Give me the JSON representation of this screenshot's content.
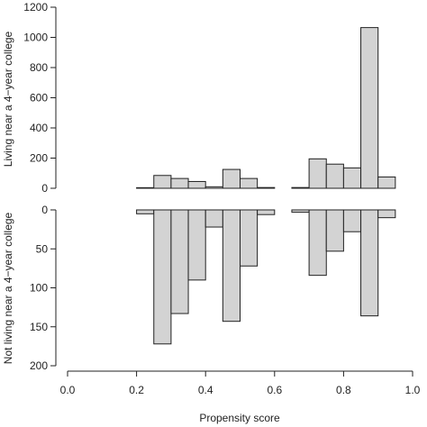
{
  "chart_data": {
    "type": "bar",
    "subtype": "mirrored-histogram",
    "xlabel": "Propensity score",
    "xlim": [
      0.0,
      1.0
    ],
    "x_ticks": [
      "0.0",
      "0.2",
      "0.4",
      "0.6",
      "0.8",
      "1.0"
    ],
    "bin_edges": [
      0.2,
      0.25,
      0.3,
      0.35,
      0.4,
      0.45,
      0.5,
      0.55,
      0.6,
      0.65,
      0.7,
      0.75,
      0.8,
      0.85,
      0.9,
      0.95
    ],
    "bar_color": "#d3d3d3",
    "top_panel": {
      "ylabel": "Living near a 4−year college",
      "ylim": [
        0,
        1200
      ],
      "y_ticks": [
        "0",
        "200",
        "400",
        "600",
        "800",
        "1000",
        "1200"
      ],
      "values": [
        4,
        85,
        65,
        45,
        10,
        125,
        65,
        5,
        0,
        5,
        195,
        160,
        135,
        1065,
        75
      ]
    },
    "bottom_panel": {
      "ylabel": "Not living near a 4−year college",
      "ylim": [
        0,
        200
      ],
      "y_ticks": [
        "0",
        "50",
        "100",
        "150",
        "200"
      ],
      "values": [
        5,
        172,
        133,
        90,
        22,
        143,
        72,
        6,
        0,
        3,
        84,
        53,
        28,
        136,
        10
      ]
    }
  }
}
